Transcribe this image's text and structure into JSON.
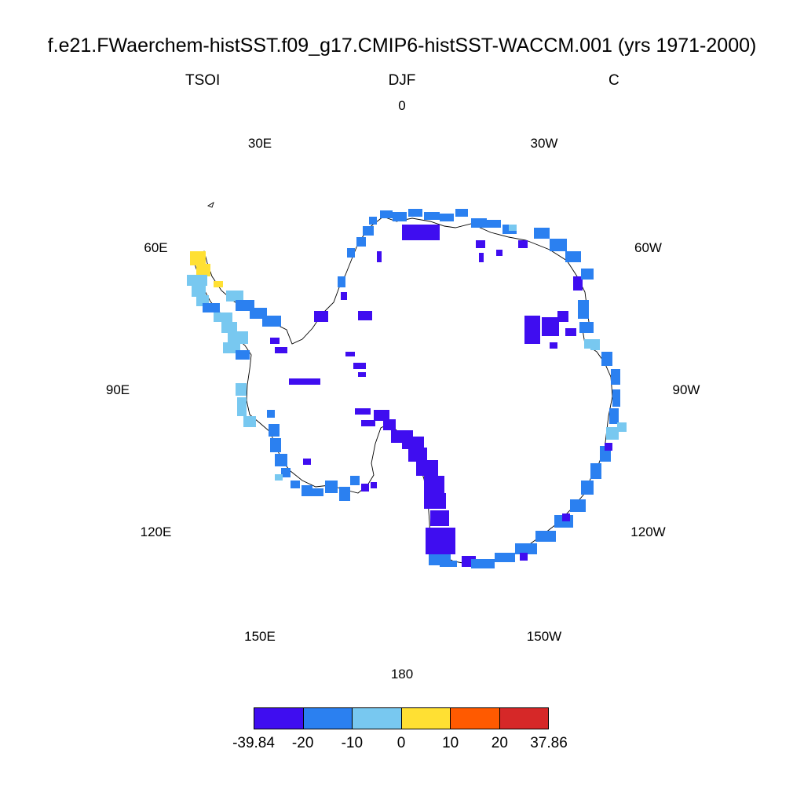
{
  "title": "f.e21.FWaerchem-histSST.f09_g17.CMIP6-histSST-WACCM.001 (yrs 1971-2000)",
  "left_string": "TSOI",
  "center_string": "DJF",
  "right_string": "C",
  "longitude_labels": [
    {
      "text": "0",
      "lon": 0
    },
    {
      "text": "30E",
      "lon": 30
    },
    {
      "text": "60E",
      "lon": 60
    },
    {
      "text": "90E",
      "lon": 90
    },
    {
      "text": "120E",
      "lon": 120
    },
    {
      "text": "150E",
      "lon": 150
    },
    {
      "text": "180",
      "lon": 180
    },
    {
      "text": "150W",
      "lon": -150
    },
    {
      "text": "120W",
      "lon": -120
    },
    {
      "text": "90W",
      "lon": -90
    },
    {
      "text": "60W",
      "lon": -60
    },
    {
      "text": "30W",
      "lon": -30
    }
  ],
  "colorbar": {
    "colors": [
      "#3f0df0",
      "#2b80f0",
      "#78c8f0",
      "#ffe033",
      "#ff5a00",
      "#d62828"
    ],
    "labels": [
      "-39.84",
      "-20",
      "-10",
      "0",
      "10",
      "20",
      "37.86"
    ]
  }
}
